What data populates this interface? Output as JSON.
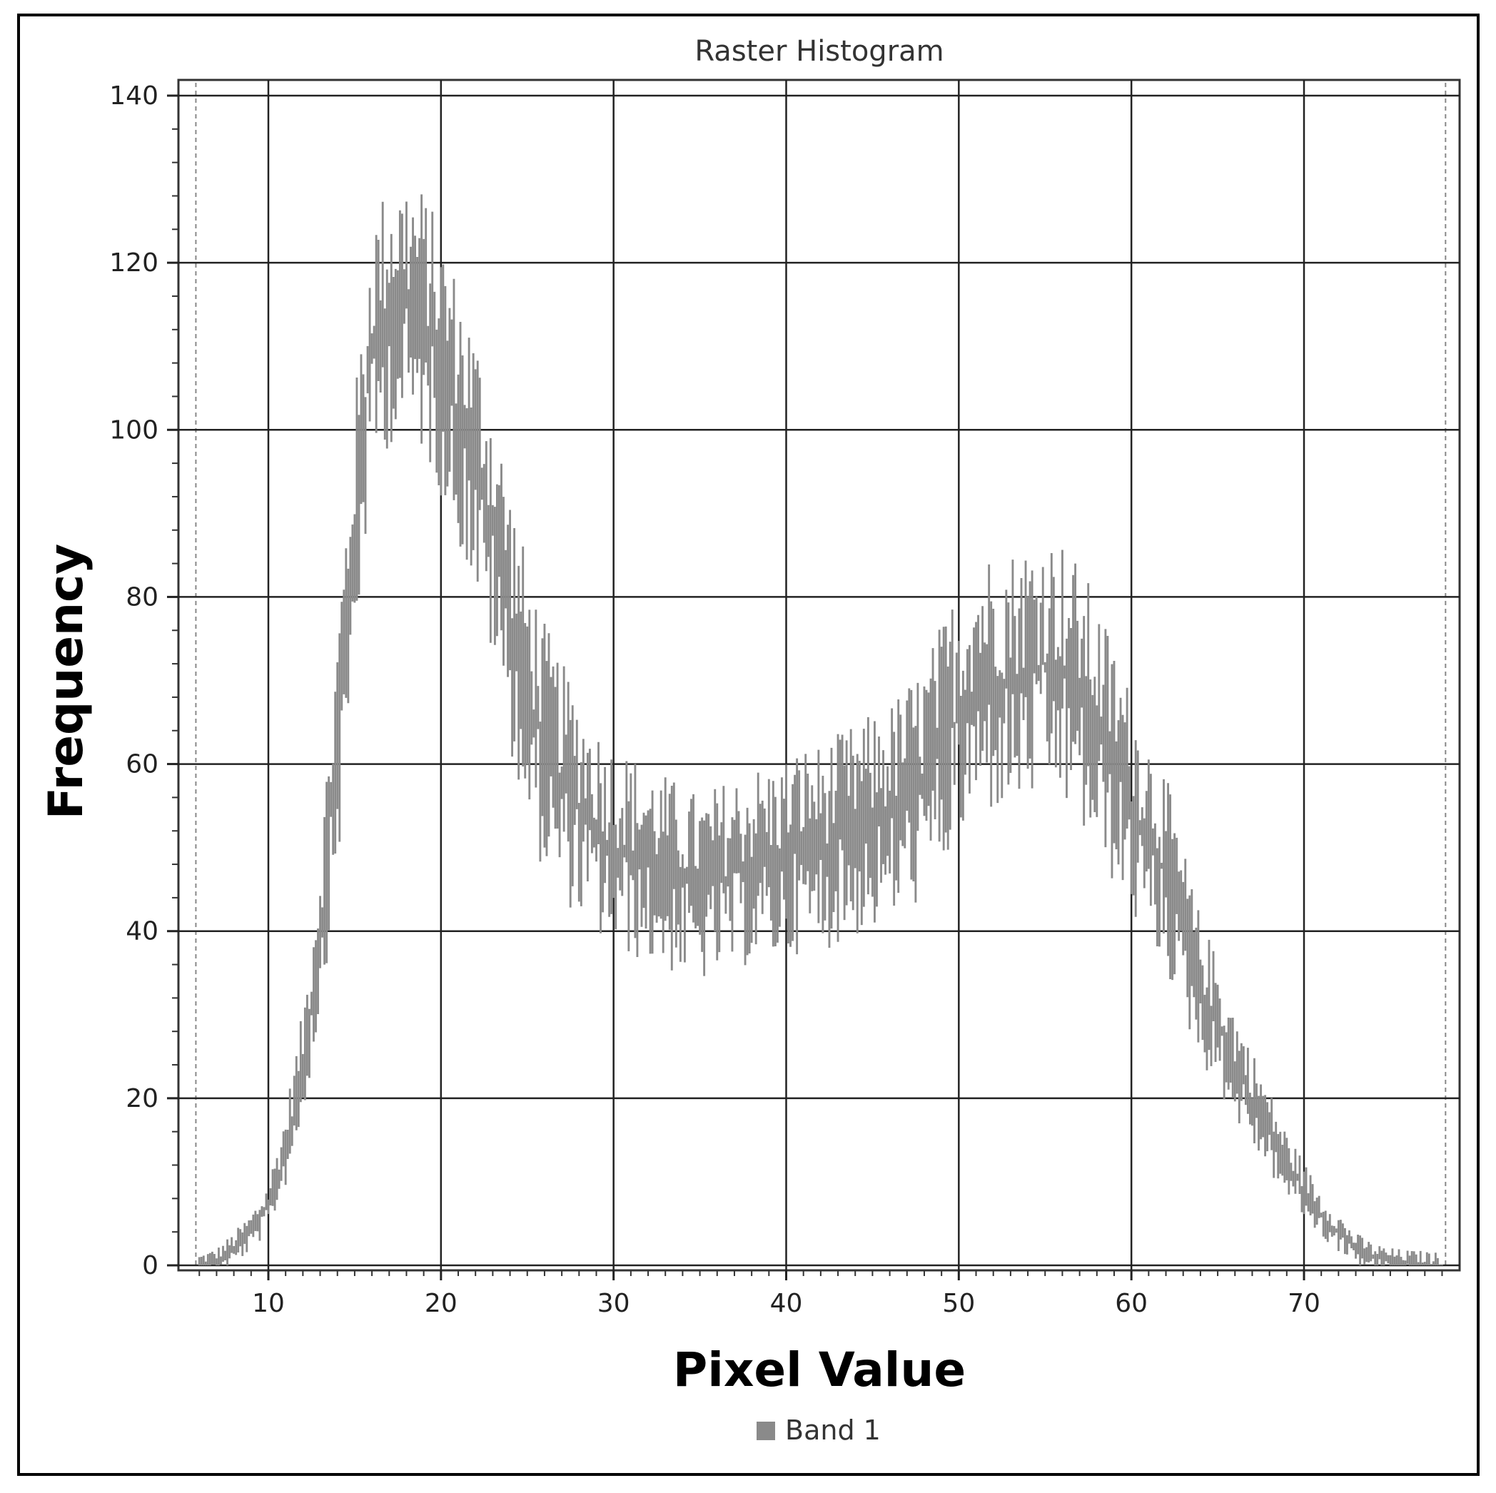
{
  "chart_data": {
    "type": "bar",
    "title": "Raster Histogram",
    "xlabel": "Pixel Value",
    "ylabel": "Frequency",
    "xlim": [
      5.5,
      78.5
    ],
    "ylim": [
      0,
      140
    ],
    "x_ticks": [
      10,
      20,
      30,
      40,
      50,
      60,
      70
    ],
    "y_ticks": [
      0,
      20,
      40,
      60,
      80,
      100,
      120,
      140
    ],
    "grid": true,
    "legend_placement": "bottom-center",
    "bin_width": 0.125,
    "series": [
      {
        "name": "Band 1",
        "color": "#8a8a8a",
        "profile_x": [
          6,
          7,
          8,
          9,
          10,
          11,
          12,
          13,
          14,
          15,
          16,
          17,
          18,
          19,
          20,
          21,
          22,
          23,
          24,
          25,
          26,
          27,
          28,
          29,
          30,
          31,
          32,
          33,
          34,
          35,
          36,
          37,
          38,
          39,
          40,
          41,
          42,
          43,
          44,
          45,
          46,
          47,
          48,
          49,
          50,
          51,
          52,
          53,
          54,
          55,
          56,
          57,
          58,
          59,
          60,
          61,
          62,
          63,
          64,
          65,
          66,
          67,
          68,
          69,
          70,
          71,
          72,
          73,
          74,
          75,
          76,
          77,
          78
        ],
        "profile_y": [
          0,
          0.5,
          2,
          4,
          7,
          14,
          24,
          40,
          62,
          88,
          110,
          114,
          115,
          113,
          108,
          102,
          96,
          88,
          78,
          68,
          62,
          58,
          55,
          52,
          50,
          49,
          48,
          47,
          46,
          45,
          46,
          47,
          48,
          48,
          49,
          50,
          50,
          51,
          52,
          53,
          54,
          56,
          58,
          62,
          66,
          69,
          70,
          70,
          71,
          72,
          71,
          68,
          64,
          60,
          55,
          51,
          47,
          40,
          33,
          29,
          24,
          20,
          16,
          12,
          9,
          6,
          4,
          2,
          1,
          0.5,
          0.3,
          0.2,
          0
        ]
      }
    ]
  }
}
